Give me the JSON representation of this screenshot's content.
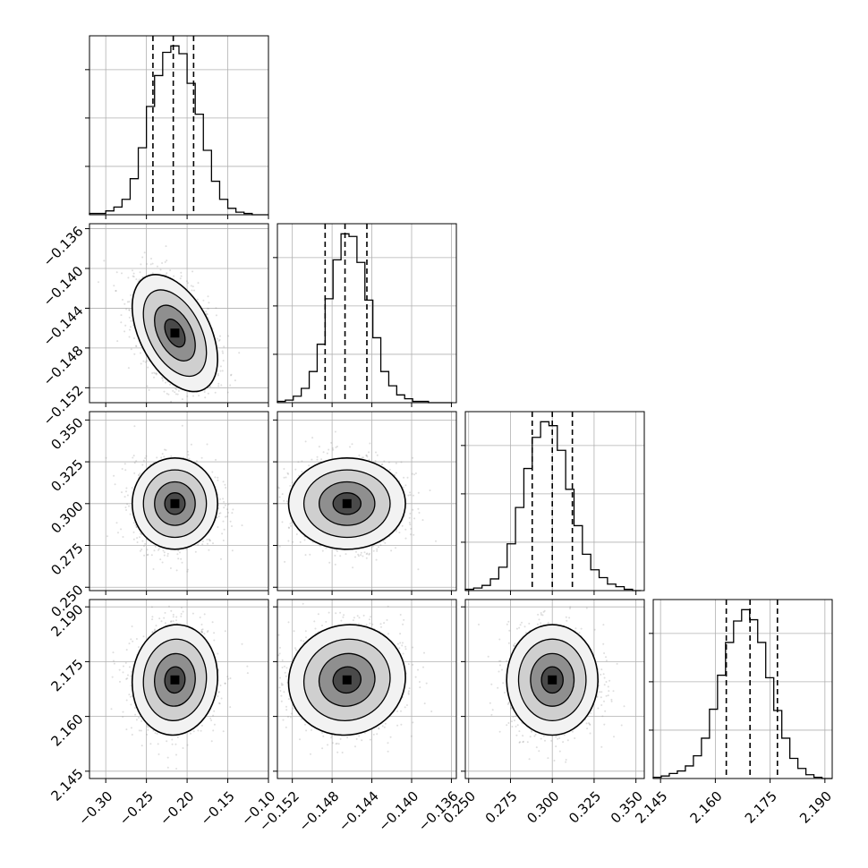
{
  "chart_data": {
    "type": "corner",
    "params": [
      {
        "range": [
          -0.32,
          -0.1
        ],
        "ticks": [
          -0.3,
          -0.25,
          -0.2,
          -0.15,
          -0.1
        ],
        "tick_labels": [
          "−0.30",
          "−0.25",
          "−0.20",
          "−0.15",
          "−0.10"
        ],
        "quantiles": [
          -0.242,
          -0.217,
          -0.192
        ],
        "hist_bins": [
          -0.32,
          -0.31,
          -0.3,
          -0.29,
          -0.28,
          -0.27,
          -0.26,
          -0.25,
          -0.24,
          -0.23,
          -0.22,
          -0.21,
          -0.2,
          -0.19,
          -0.18,
          -0.17,
          -0.16,
          -0.15,
          -0.14,
          -0.13,
          -0.12,
          -0.11,
          -0.1
        ],
        "hist_counts": [
          1,
          1,
          3,
          6,
          12,
          28,
          52,
          84,
          108,
          126,
          131,
          125,
          102,
          78,
          50,
          26,
          12,
          5,
          2,
          1,
          0,
          0
        ]
      },
      {
        "range": [
          -0.1535,
          -0.1355
        ],
        "ticks": [
          -0.152,
          -0.148,
          -0.144,
          -0.14,
          -0.136
        ],
        "tick_labels": [
          "−0.152",
          "−0.148",
          "−0.144",
          "−0.140",
          "−0.136"
        ],
        "quantiles": [
          -0.1487,
          -0.1467,
          -0.1445
        ],
        "hist_bins": [
          -0.1535,
          -0.1527,
          -0.1519,
          -0.1511,
          -0.1503,
          -0.1495,
          -0.1487,
          -0.1479,
          -0.1471,
          -0.1463,
          -0.1455,
          -0.1447,
          -0.1439,
          -0.1431,
          -0.1423,
          -0.1415,
          -0.1407,
          -0.1399,
          -0.1391,
          -0.1383,
          -0.1375,
          -0.1367,
          -0.1359
        ],
        "hist_counts": [
          1,
          2,
          5,
          11,
          24,
          45,
          80,
          110,
          130,
          128,
          108,
          79,
          50,
          24,
          13,
          6,
          3,
          1,
          1,
          0,
          0,
          0
        ]
      },
      {
        "range": [
          0.248,
          0.355
        ],
        "ticks": [
          0.25,
          0.275,
          0.3,
          0.325,
          0.35
        ],
        "tick_labels": [
          "0.250",
          "0.275",
          "0.300",
          "0.325",
          "0.350"
        ],
        "quantiles": [
          0.288,
          0.3,
          0.312
        ],
        "hist_bins": [
          0.248,
          0.253,
          0.258,
          0.263,
          0.268,
          0.273,
          0.278,
          0.283,
          0.288,
          0.293,
          0.298,
          0.303,
          0.308,
          0.313,
          0.318,
          0.323,
          0.328,
          0.333,
          0.338,
          0.343,
          0.348,
          0.353
        ],
        "hist_counts": [
          1,
          2,
          4,
          9,
          18,
          36,
          64,
          94,
          118,
          130,
          127,
          108,
          78,
          50,
          28,
          16,
          10,
          5,
          3,
          1,
          0
        ]
      },
      {
        "range": [
          2.143,
          2.192
        ],
        "ticks": [
          2.145,
          2.16,
          2.175,
          2.19
        ],
        "tick_labels": [
          "2.145",
          "2.160",
          "2.175",
          "2.190"
        ],
        "quantiles": [
          2.163,
          2.1695,
          2.177
        ],
        "hist_bins": [
          2.143,
          2.1452,
          2.1474,
          2.1496,
          2.1518,
          2.154,
          2.1562,
          2.1584,
          2.1606,
          2.1628,
          2.165,
          2.1672,
          2.1694,
          2.1716,
          2.1738,
          2.176,
          2.1782,
          2.1804,
          2.1826,
          2.1848,
          2.187,
          2.1892,
          2.192
        ],
        "hist_counts": [
          1,
          2,
          4,
          6,
          10,
          18,
          32,
          55,
          82,
          108,
          125,
          134,
          126,
          108,
          80,
          54,
          32,
          16,
          8,
          3,
          1,
          0
        ]
      }
    ],
    "pairs": [
      {
        "x": 0,
        "y": 1,
        "mean": [
          -0.215,
          -0.1465
        ],
        "sd": [
          0.025,
          0.0028
        ],
        "rho": -0.45
      },
      {
        "x": 0,
        "y": 2,
        "mean": [
          -0.215,
          0.3
        ],
        "sd": [
          0.025,
          0.013
        ],
        "rho": 0.0
      },
      {
        "x": 1,
        "y": 2,
        "mean": [
          -0.1465,
          0.3
        ],
        "sd": [
          0.0028,
          0.013
        ],
        "rho": 0.0
      },
      {
        "x": 0,
        "y": 3,
        "mean": [
          -0.215,
          2.17
        ],
        "sd": [
          0.025,
          0.0072
        ],
        "rho": 0.05
      },
      {
        "x": 1,
        "y": 3,
        "mean": [
          -0.1465,
          2.17
        ],
        "sd": [
          0.0028,
          0.0072
        ],
        "rho": 0.05
      },
      {
        "x": 2,
        "y": 3,
        "mean": [
          0.3,
          2.17
        ],
        "sd": [
          0.013,
          0.0072
        ],
        "rho": 0.0
      }
    ],
    "grid": true,
    "title": "",
    "xlabel": "",
    "ylabel": ""
  }
}
